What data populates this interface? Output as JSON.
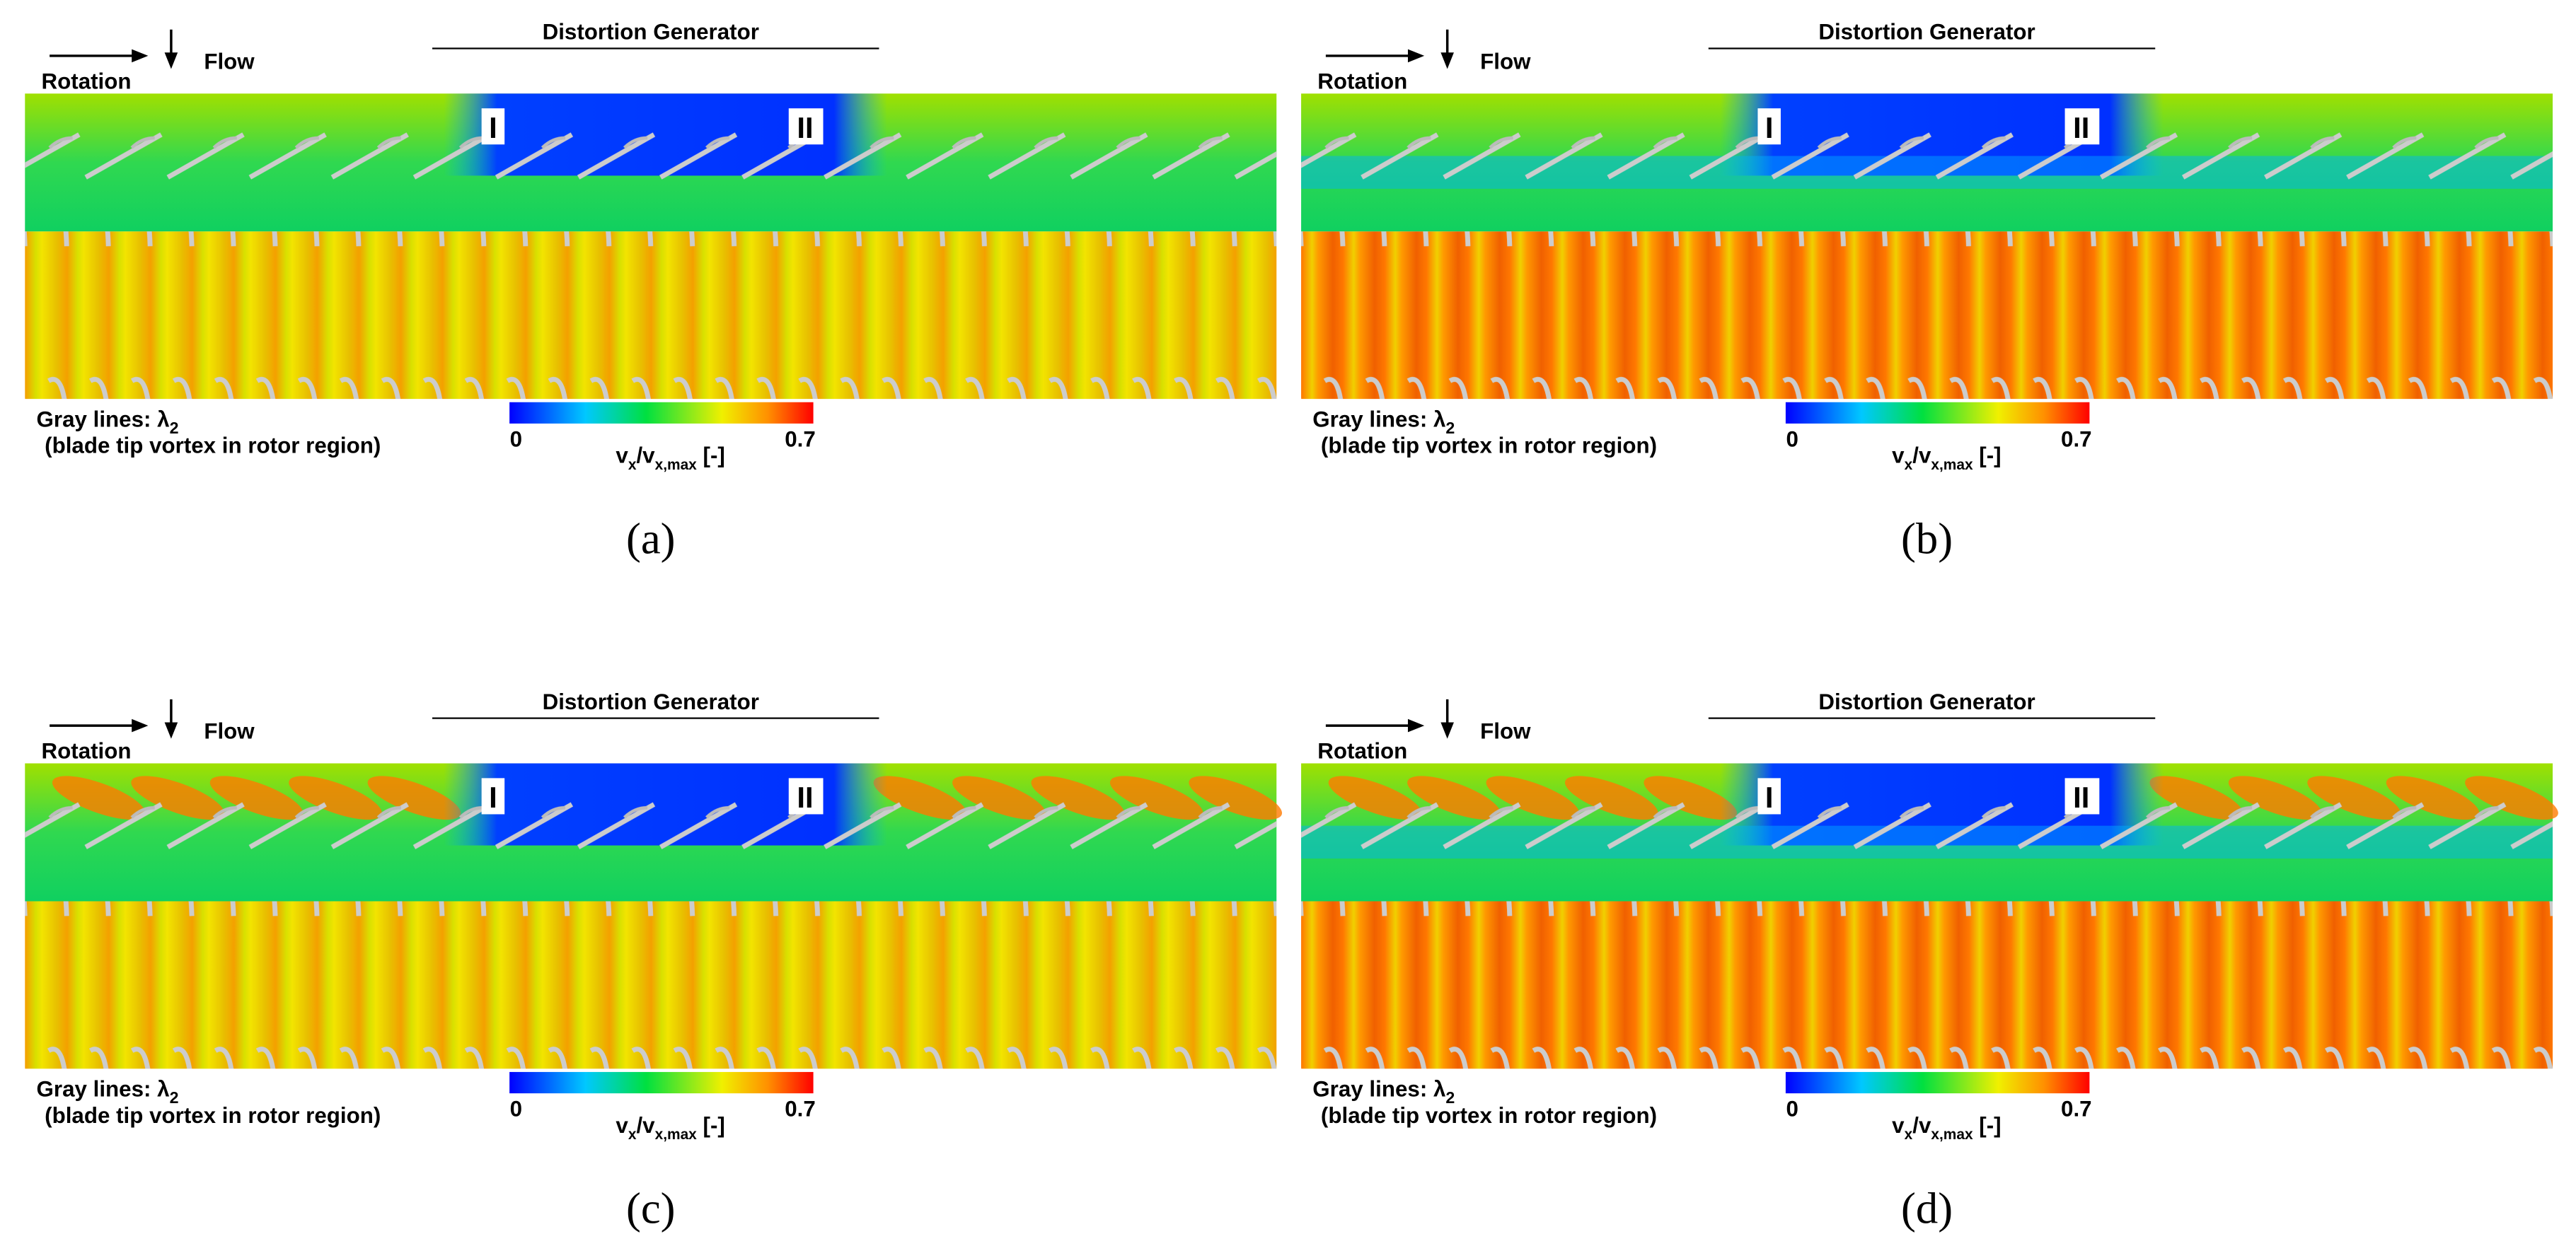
{
  "panels": [
    {
      "caption": "(a)"
    },
    {
      "caption": "(b)"
    },
    {
      "caption": "(c)"
    },
    {
      "caption": "(d)"
    }
  ],
  "labels": {
    "rotation": "Rotation",
    "flow": "Flow",
    "distortion_generator": "Distortion Generator",
    "marker_1": "I",
    "marker_2": "II",
    "gray_lines": "Gray lines: λ",
    "gray_lines_sub": "2",
    "vortex_note": "(blade tip vortex in rotor region)"
  },
  "colorbar": {
    "ticks": [
      0,
      0.7
    ],
    "label_parts": [
      "v",
      "x",
      "/v",
      "x,max",
      " [-]"
    ]
  }
}
